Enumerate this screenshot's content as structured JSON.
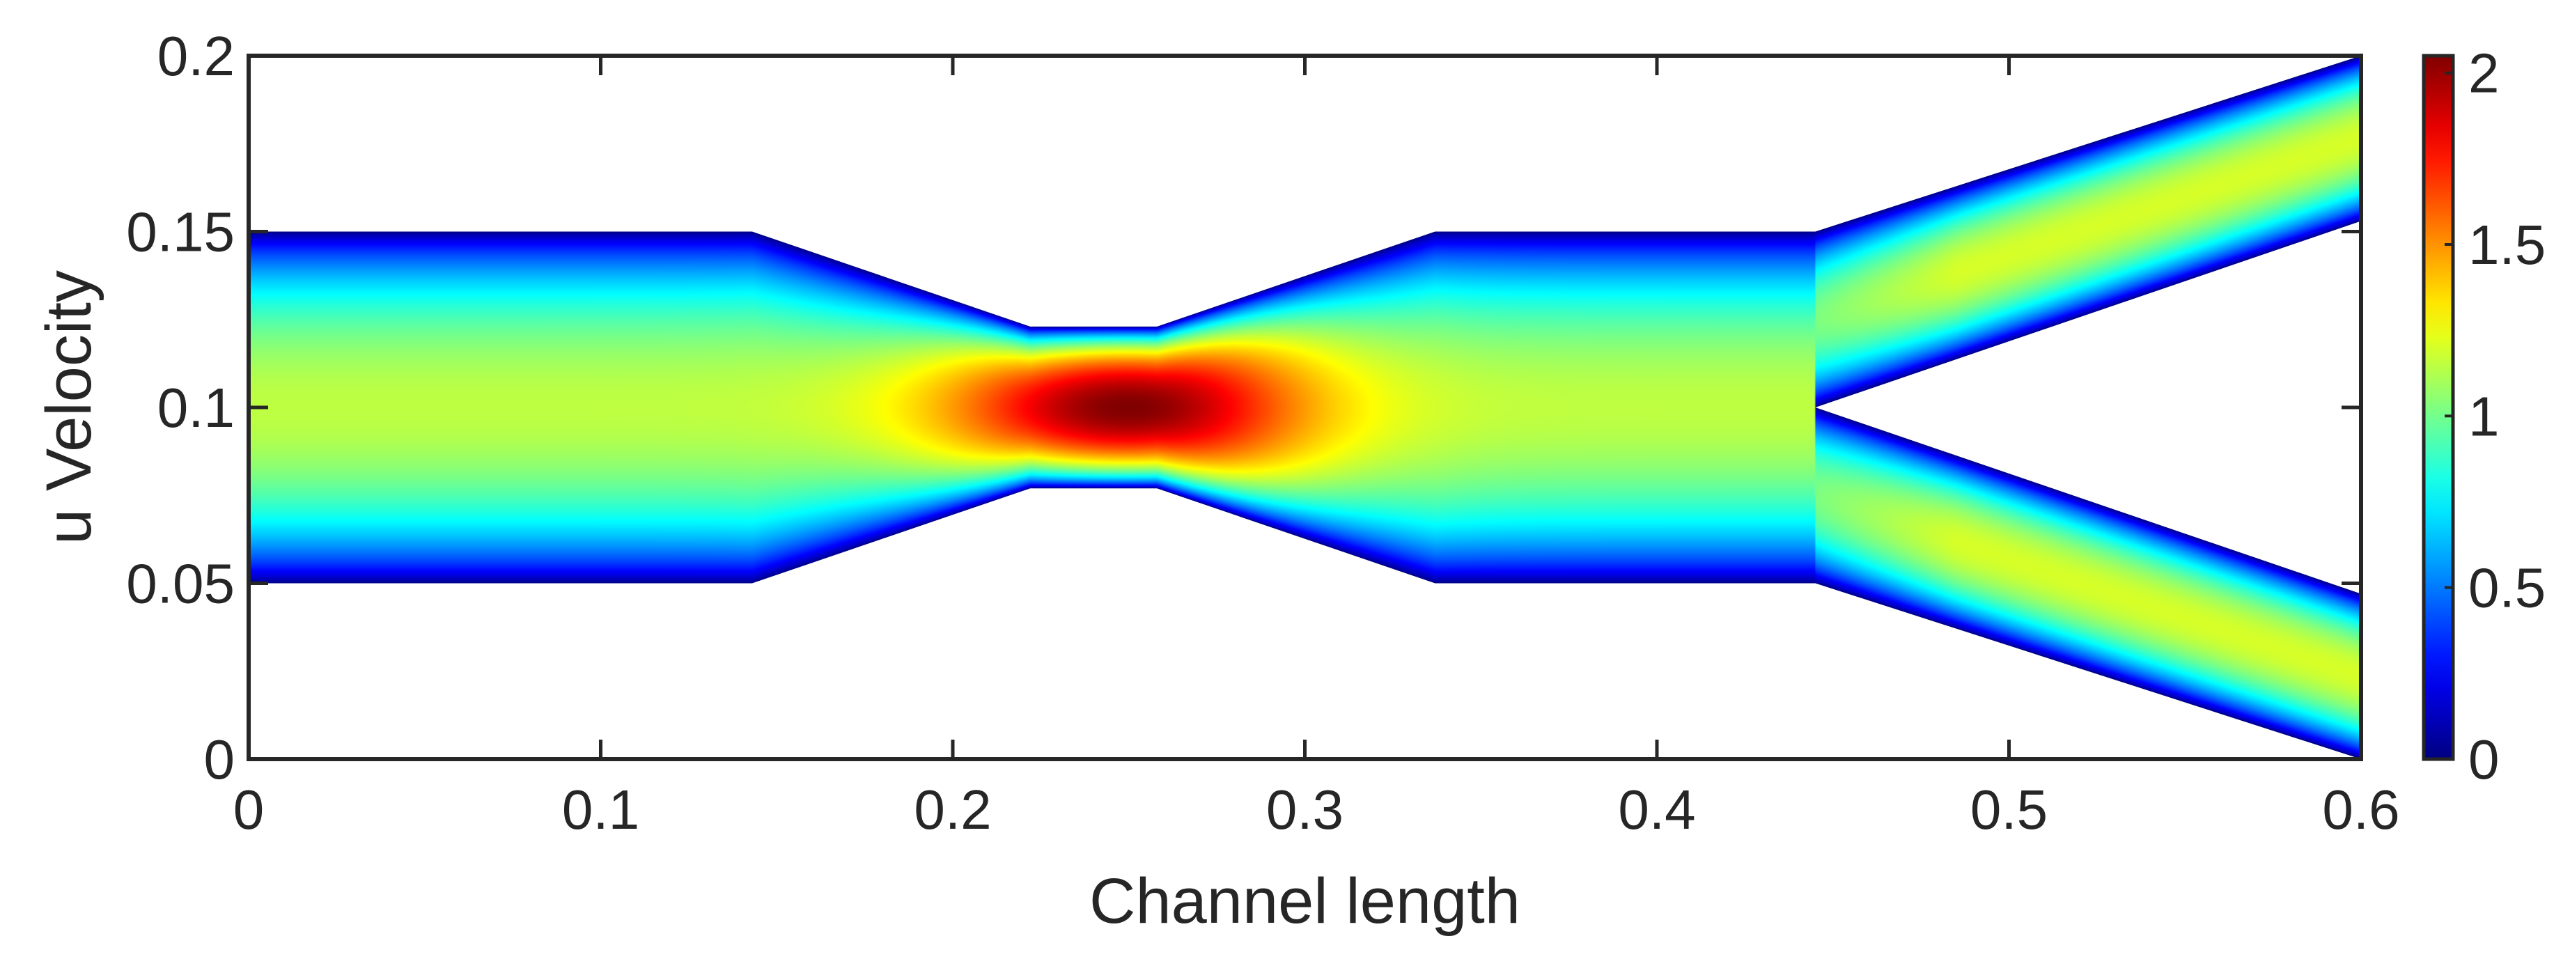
{
  "chart_data": {
    "type": "heatmap",
    "title": "",
    "xlabel": "Channel length",
    "ylabel": "u Velocity",
    "xlim": [
      0,
      0.6
    ],
    "ylim": [
      0,
      0.2
    ],
    "x_ticks": [
      "0",
      "0.1",
      "0.2",
      "0.3",
      "0.4",
      "0.5",
      "0.6"
    ],
    "y_ticks": [
      "0",
      "0.05",
      "0.1",
      "0.15",
      "0.2"
    ],
    "colormap": "jet",
    "colorbar": {
      "range": [
        0,
        2.05
      ],
      "ticks": [
        "0",
        "0.5",
        "1",
        "1.5",
        "2"
      ]
    },
    "channel_geometry": {
      "upper_wall": [
        [
          0,
          0.15
        ],
        [
          0.143,
          0.15
        ],
        [
          0.222,
          0.123
        ],
        [
          0.258,
          0.123
        ],
        [
          0.337,
          0.15
        ],
        [
          0.445,
          0.15
        ],
        [
          0.6,
          0.2
        ]
      ],
      "lower_wall": [
        [
          0,
          0.05
        ],
        [
          0.143,
          0.05
        ],
        [
          0.222,
          0.077
        ],
        [
          0.258,
          0.077
        ],
        [
          0.337,
          0.05
        ],
        [
          0.445,
          0.05
        ],
        [
          0.6,
          0.0
        ]
      ],
      "bifurcation_inner_upper": [
        [
          0.445,
          0.1
        ],
        [
          0.6,
          0.153
        ]
      ],
      "bifurcation_inner_lower": [
        [
          0.445,
          0.1
        ],
        [
          0.6,
          0.047
        ]
      ]
    },
    "velocity_field": {
      "peak_value": 2.05,
      "peak_location": [
        0.25,
        0.1
      ],
      "inlet_centerline_value": 1.15,
      "outlet_branch_centerline_value": 1.2,
      "wall_value": 0
    },
    "grid": false,
    "legend": "colorbar-right"
  }
}
